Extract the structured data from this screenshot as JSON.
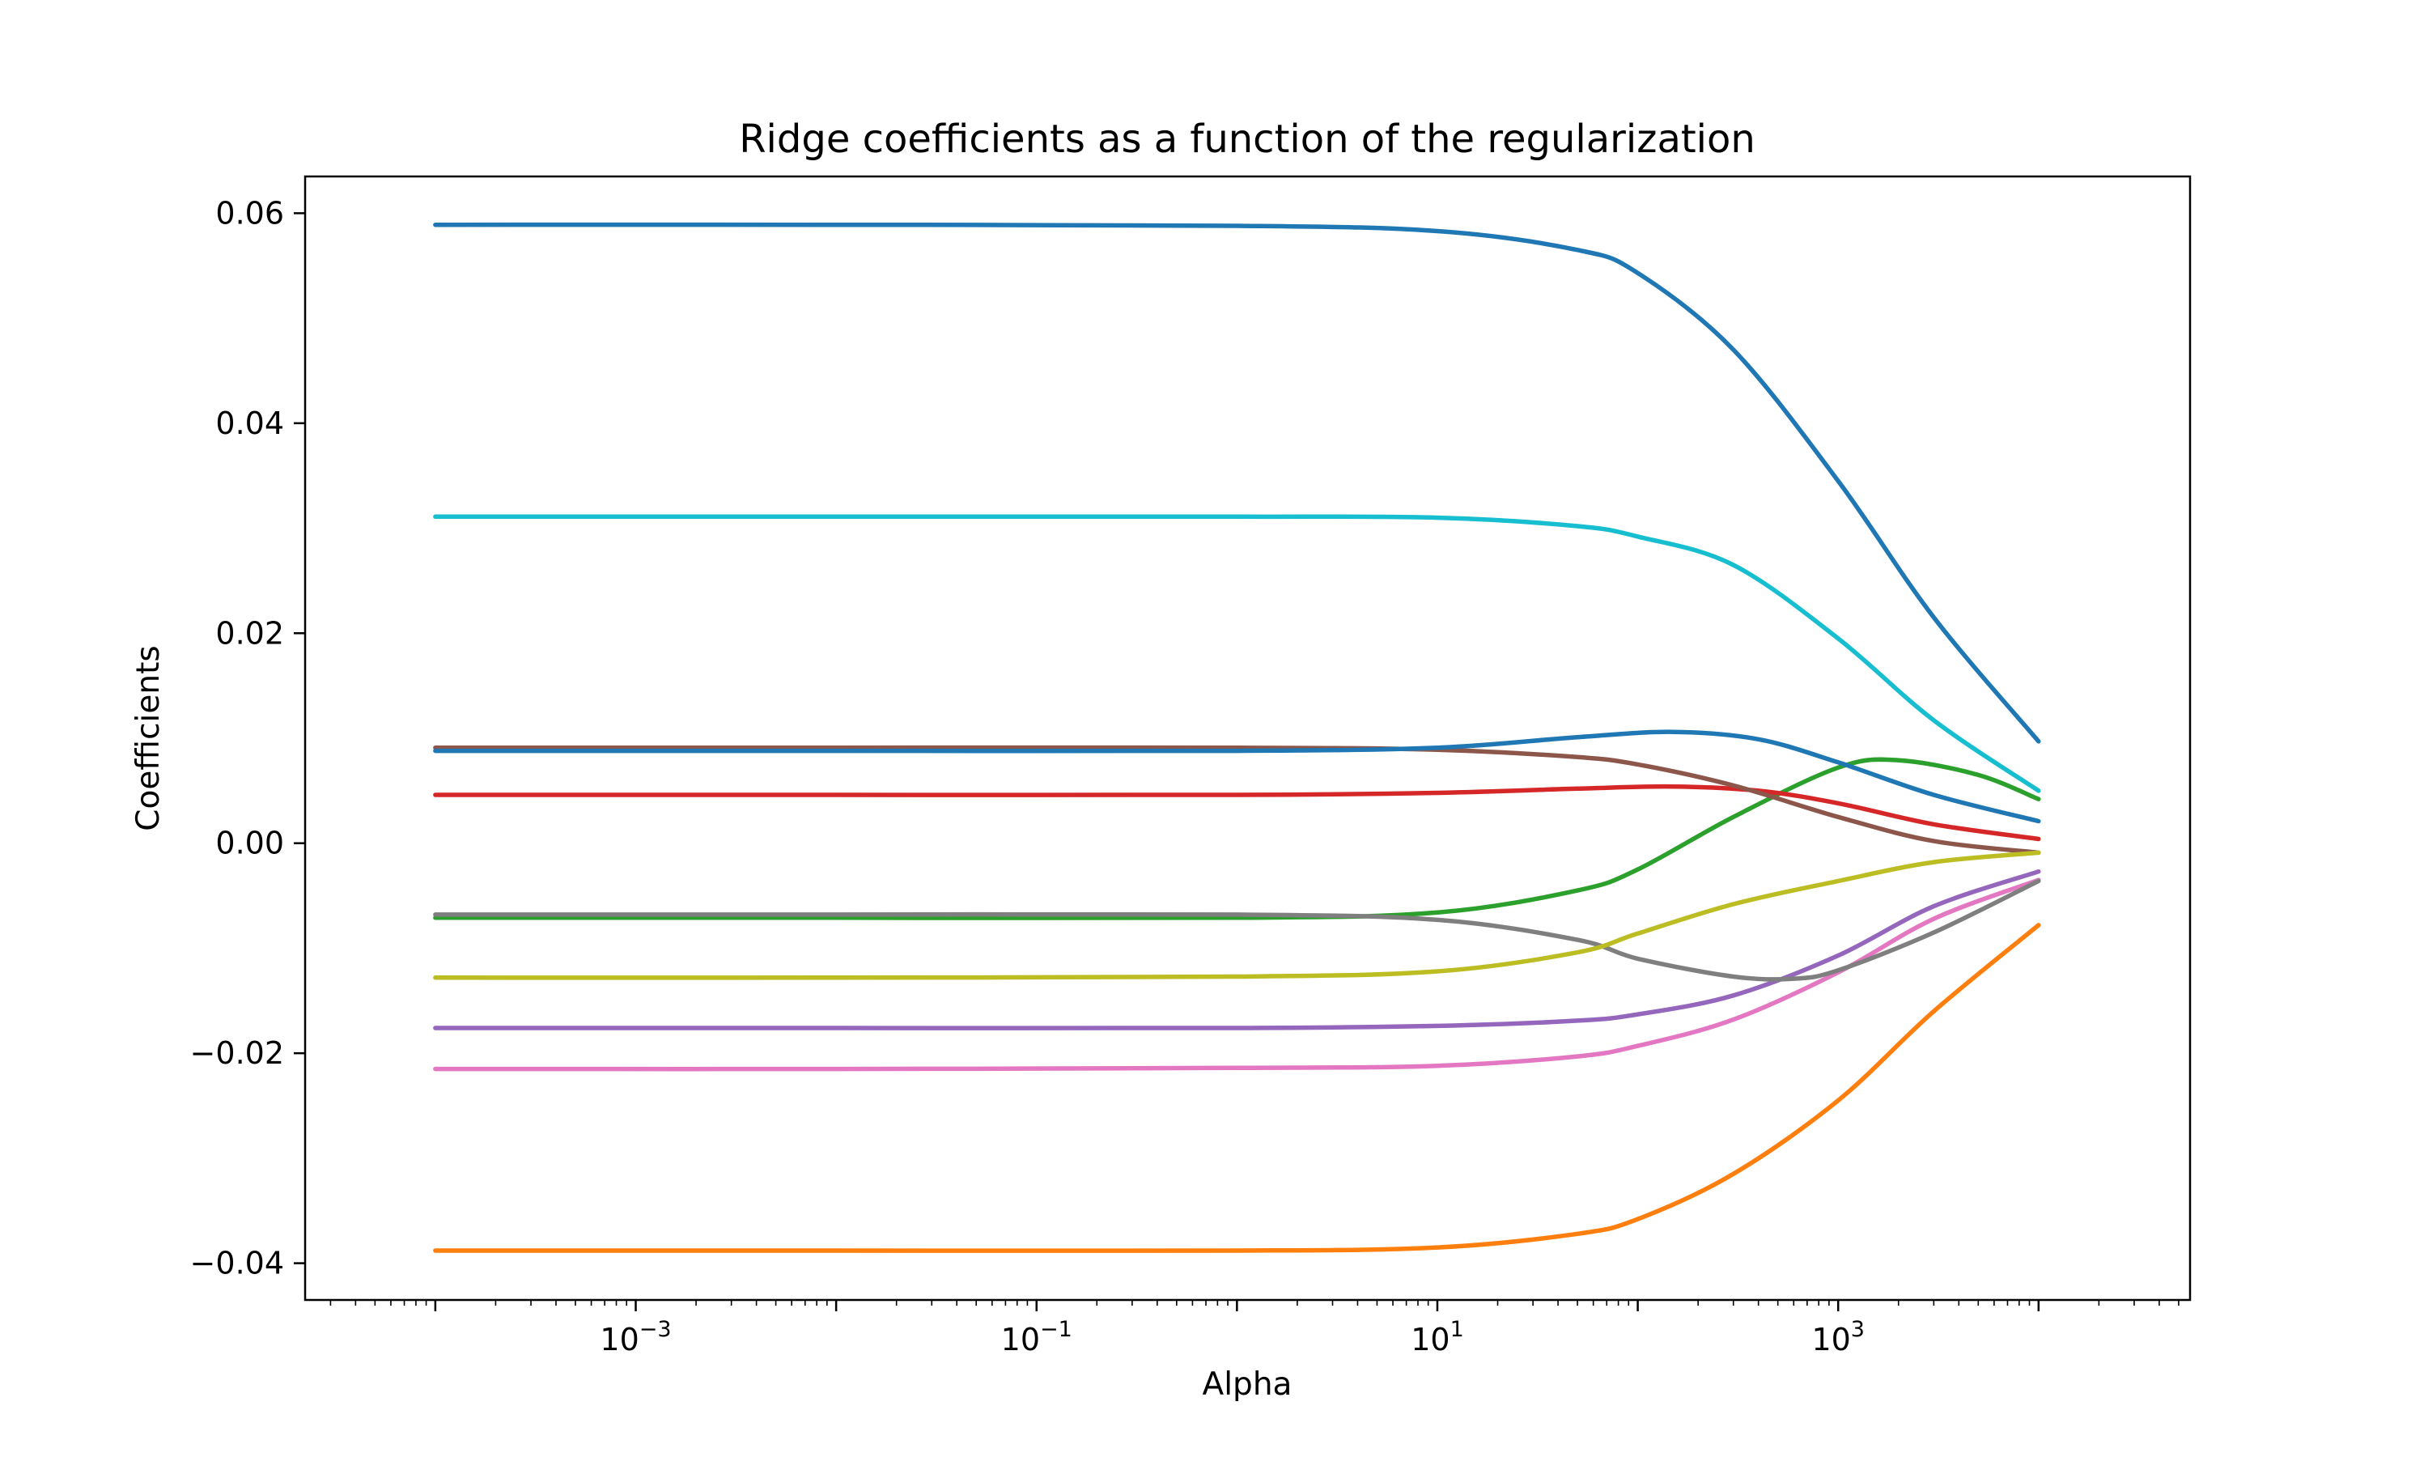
{
  "chart_data": {
    "type": "line",
    "title": "Ridge coefficients as a function of the regularization",
    "xlabel": "Alpha",
    "ylabel": "Coefficients",
    "x_scale": "log",
    "xlim": [
      2.24e-05,
      57000
    ],
    "ylim": [
      -0.0435,
      0.0635
    ],
    "grid": false,
    "legend": "none",
    "x_ticks": [
      0.001,
      0.1,
      10,
      1000
    ],
    "x_tick_labels": [
      {
        "base": "10",
        "exp": "−3"
      },
      {
        "base": "10",
        "exp": "−1"
      },
      {
        "base": "10",
        "exp": "1"
      },
      {
        "base": "10",
        "exp": "3"
      }
    ],
    "y_ticks": [
      -0.04,
      -0.02,
      0.0,
      0.02,
      0.04,
      0.06
    ],
    "y_tick_labels": [
      "−0.04",
      "−0.02",
      "0.00",
      "0.02",
      "0.04",
      "0.06"
    ],
    "series": [
      {
        "color": "#1f77b4",
        "x": [
          0.0001,
          0.01,
          1,
          10,
          50,
          100,
          300,
          1000,
          3000,
          10000
        ],
        "y": [
          0.0589,
          0.0589,
          0.0588,
          0.0583,
          0.0565,
          0.0543,
          0.047,
          0.0345,
          0.0215,
          0.0097
        ]
      },
      {
        "color": "#ff7f0e",
        "x": [
          0.0001,
          0.01,
          1,
          10,
          50,
          100,
          300,
          1000,
          3000,
          10000
        ],
        "y": [
          -0.0388,
          -0.0388,
          -0.0388,
          -0.0385,
          -0.0372,
          -0.0358,
          -0.0315,
          -0.0245,
          -0.016,
          -0.0078
        ]
      },
      {
        "color": "#2ca02c",
        "x": [
          0.0001,
          0.01,
          1,
          10,
          50,
          100,
          300,
          1000,
          2000,
          5000,
          10000
        ],
        "y": [
          -0.0071,
          -0.0071,
          -0.0071,
          -0.0066,
          -0.0045,
          -0.0025,
          0.0025,
          0.0072,
          0.0079,
          0.0065,
          0.0042
        ]
      },
      {
        "color": "#d62728",
        "x": [
          0.0001,
          0.01,
          1,
          10,
          50,
          150,
          400,
          1000,
          3000,
          10000
        ],
        "y": [
          0.0046,
          0.0046,
          0.0046,
          0.0048,
          0.0052,
          0.0054,
          0.005,
          0.0038,
          0.0018,
          0.0004
        ]
      },
      {
        "color": "#9467bd",
        "x": [
          0.0001,
          0.01,
          1,
          10,
          50,
          100,
          300,
          1000,
          3000,
          10000
        ],
        "y": [
          -0.0176,
          -0.0176,
          -0.0176,
          -0.0174,
          -0.0169,
          -0.0163,
          -0.0145,
          -0.0107,
          -0.006,
          -0.0027
        ]
      },
      {
        "color": "#8c564b",
        "x": [
          0.0001,
          0.01,
          1,
          10,
          50,
          100,
          300,
          1000,
          3000,
          10000
        ],
        "y": [
          0.0091,
          0.0091,
          0.0091,
          0.0089,
          0.0082,
          0.0075,
          0.0055,
          0.0025,
          0.0002,
          -0.0009
        ]
      },
      {
        "color": "#e377c2",
        "x": [
          0.0001,
          0.01,
          1,
          10,
          50,
          100,
          300,
          1000,
          3000,
          10000
        ],
        "y": [
          -0.0215,
          -0.0215,
          -0.0214,
          -0.0212,
          -0.0203,
          -0.0193,
          -0.0168,
          -0.0123,
          -0.0072,
          -0.0035
        ]
      },
      {
        "color": "#7f7f7f",
        "x": [
          0.0001,
          0.01,
          1,
          10,
          50,
          100,
          300,
          600,
          1000,
          3000,
          10000
        ],
        "y": [
          -0.0068,
          -0.0068,
          -0.0068,
          -0.0073,
          -0.0092,
          -0.011,
          -0.0127,
          -0.0129,
          -0.0121,
          -0.0085,
          -0.0036
        ]
      },
      {
        "color": "#bcbd22",
        "x": [
          0.0001,
          0.01,
          1,
          10,
          50,
          100,
          300,
          1000,
          3000,
          10000
        ],
        "y": [
          -0.0128,
          -0.0128,
          -0.0127,
          -0.0122,
          -0.0104,
          -0.0086,
          -0.0058,
          -0.0036,
          -0.0018,
          -0.0009
        ]
      },
      {
        "color": "#17becf",
        "x": [
          0.0001,
          0.01,
          1,
          10,
          50,
          100,
          300,
          1000,
          3000,
          10000
        ],
        "y": [
          0.0311,
          0.0311,
          0.0311,
          0.031,
          0.0302,
          0.0292,
          0.0265,
          0.0195,
          0.0117,
          0.005
        ]
      },
      {
        "color": "#1f77b4",
        "x": [
          0.0001,
          0.01,
          1,
          10,
          50,
          150,
          400,
          1000,
          3000,
          10000
        ],
        "y": [
          0.0088,
          0.0088,
          0.0088,
          0.0091,
          0.0101,
          0.0106,
          0.0099,
          0.0077,
          0.0046,
          0.0021
        ]
      }
    ]
  }
}
